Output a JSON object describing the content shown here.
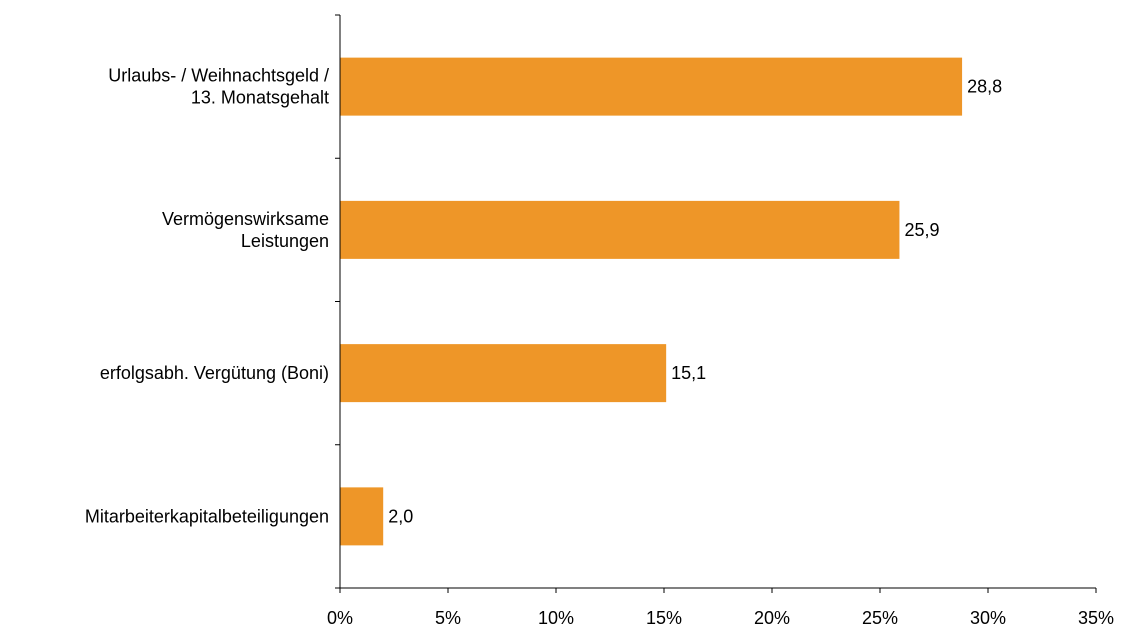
{
  "chart_data": {
    "type": "bar",
    "orientation": "horizontal",
    "categories": [
      [
        "Urlaubs- / Weihnachtsgeld /",
        "13. Monatsgehalt"
      ],
      [
        "Vermögenswirksame",
        "Leistungen"
      ],
      [
        "erfolgsabh. Vergütung (Boni)"
      ],
      [
        "Mitarbeiterkapitalbeteiligungen"
      ]
    ],
    "values": [
      28.8,
      25.9,
      15.1,
      2.0
    ],
    "data_labels": [
      "28,8",
      "25,9",
      "15,1",
      "2,0"
    ],
    "xlim": [
      0,
      35
    ],
    "x_ticks": [
      0,
      5,
      10,
      15,
      20,
      25,
      30,
      35
    ],
    "x_tick_labels": [
      "0%",
      "5%",
      "10%",
      "15%",
      "20%",
      "25%",
      "30%",
      "35%"
    ],
    "title": "",
    "xlabel": "",
    "ylabel": "",
    "grid": false,
    "legend": "none",
    "bar_color": "#EE9628",
    "axis_color": "#000000"
  }
}
